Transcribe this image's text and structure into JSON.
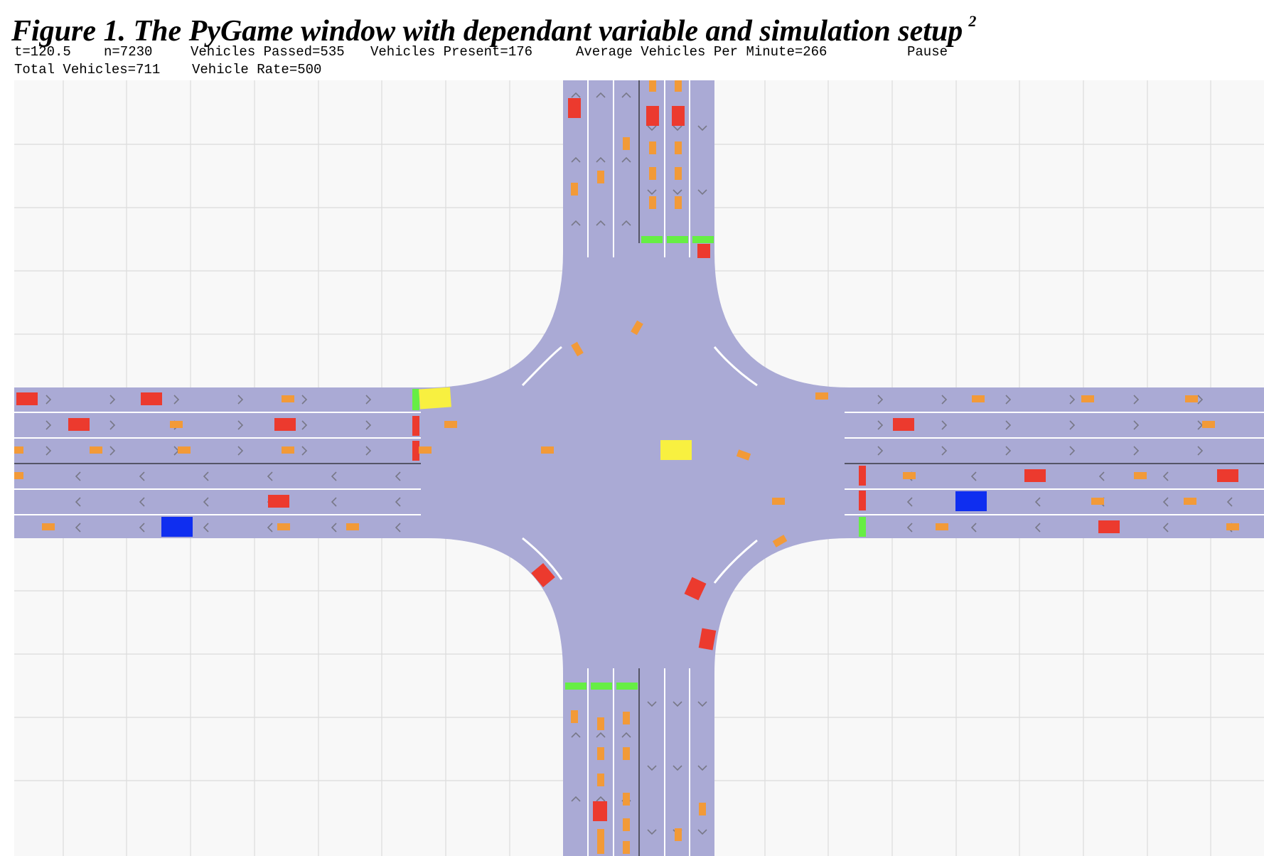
{
  "caption": {
    "text": "Figure 1.  The PyGame window with dependant variable and simulation setup",
    "footnote_mark": "2"
  },
  "status_bar": {
    "time": "t=120.5",
    "steps": "n=7230",
    "vehicles_passed": "Vehicles Passed=535",
    "vehicles_present": "Vehicles Present=176",
    "avg_per_minute": "Average Vehicles Per Minute=266",
    "pause_label": "Pause",
    "total_vehicles": "Total Vehicles=711",
    "vehicle_rate": "Vehicle Rate=500"
  },
  "colors": {
    "background": "#f8f8f8",
    "grid": "#dcdcdc",
    "road": "#aaaad5",
    "lane_line": "#ffffff",
    "arrow": "#787888",
    "car": "#ec3a2e",
    "motorcycle": "#f29a38",
    "bus": "#0f2ef0",
    "truck": "#f8f040",
    "signal_green": "#66ee44",
    "signal_red": "#ec3a2e"
  },
  "vehicle_types": [
    "car",
    "motorcycle",
    "bus",
    "truck"
  ],
  "signal_states": [
    "green",
    "red"
  ]
}
